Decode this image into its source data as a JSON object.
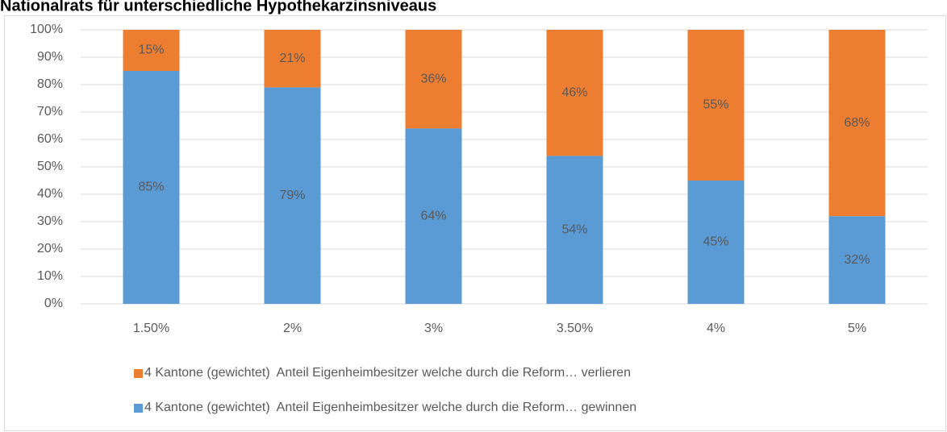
{
  "chart_data": {
    "type": "stacked_bar",
    "title": "Nationalrats für unterschiedliche Hypothekarzinsniveaus",
    "categories": [
      "1.50%",
      "2%",
      "3%",
      "3.50%",
      "4%",
      "5%"
    ],
    "series": [
      {
        "name": "4 Kantone (gewichtet)  Anteil Eigenheimbesitzer welche durch die Reform… gewinnen",
        "color": "#5b9bd5",
        "values": [
          85,
          79,
          64,
          54,
          45,
          32
        ],
        "value_labels": [
          "85%",
          "79%",
          "64%",
          "54%",
          "45%",
          "32%"
        ]
      },
      {
        "name": "4 Kantone (gewichtet)  Anteil Eigenheimbesitzer welche durch die Reform… verlieren",
        "color": "#ed7d31",
        "values": [
          15,
          21,
          36,
          46,
          55,
          68
        ],
        "value_labels": [
          "15%",
          "21%",
          "36%",
          "46%",
          "55%",
          "68%"
        ]
      }
    ],
    "ylim": [
      0,
      100
    ],
    "yticks": [
      {
        "value": 0,
        "label": "0%"
      },
      {
        "value": 10,
        "label": "10%"
      },
      {
        "value": 20,
        "label": "20%"
      },
      {
        "value": 30,
        "label": "30%"
      },
      {
        "value": 40,
        "label": "40%"
      },
      {
        "value": 50,
        "label": "50%"
      },
      {
        "value": 60,
        "label": "60%"
      },
      {
        "value": 70,
        "label": "70%"
      },
      {
        "value": 80,
        "label": "80%"
      },
      {
        "value": 90,
        "label": "90%"
      },
      {
        "value": 100,
        "label": "100%"
      }
    ],
    "grid": true
  }
}
